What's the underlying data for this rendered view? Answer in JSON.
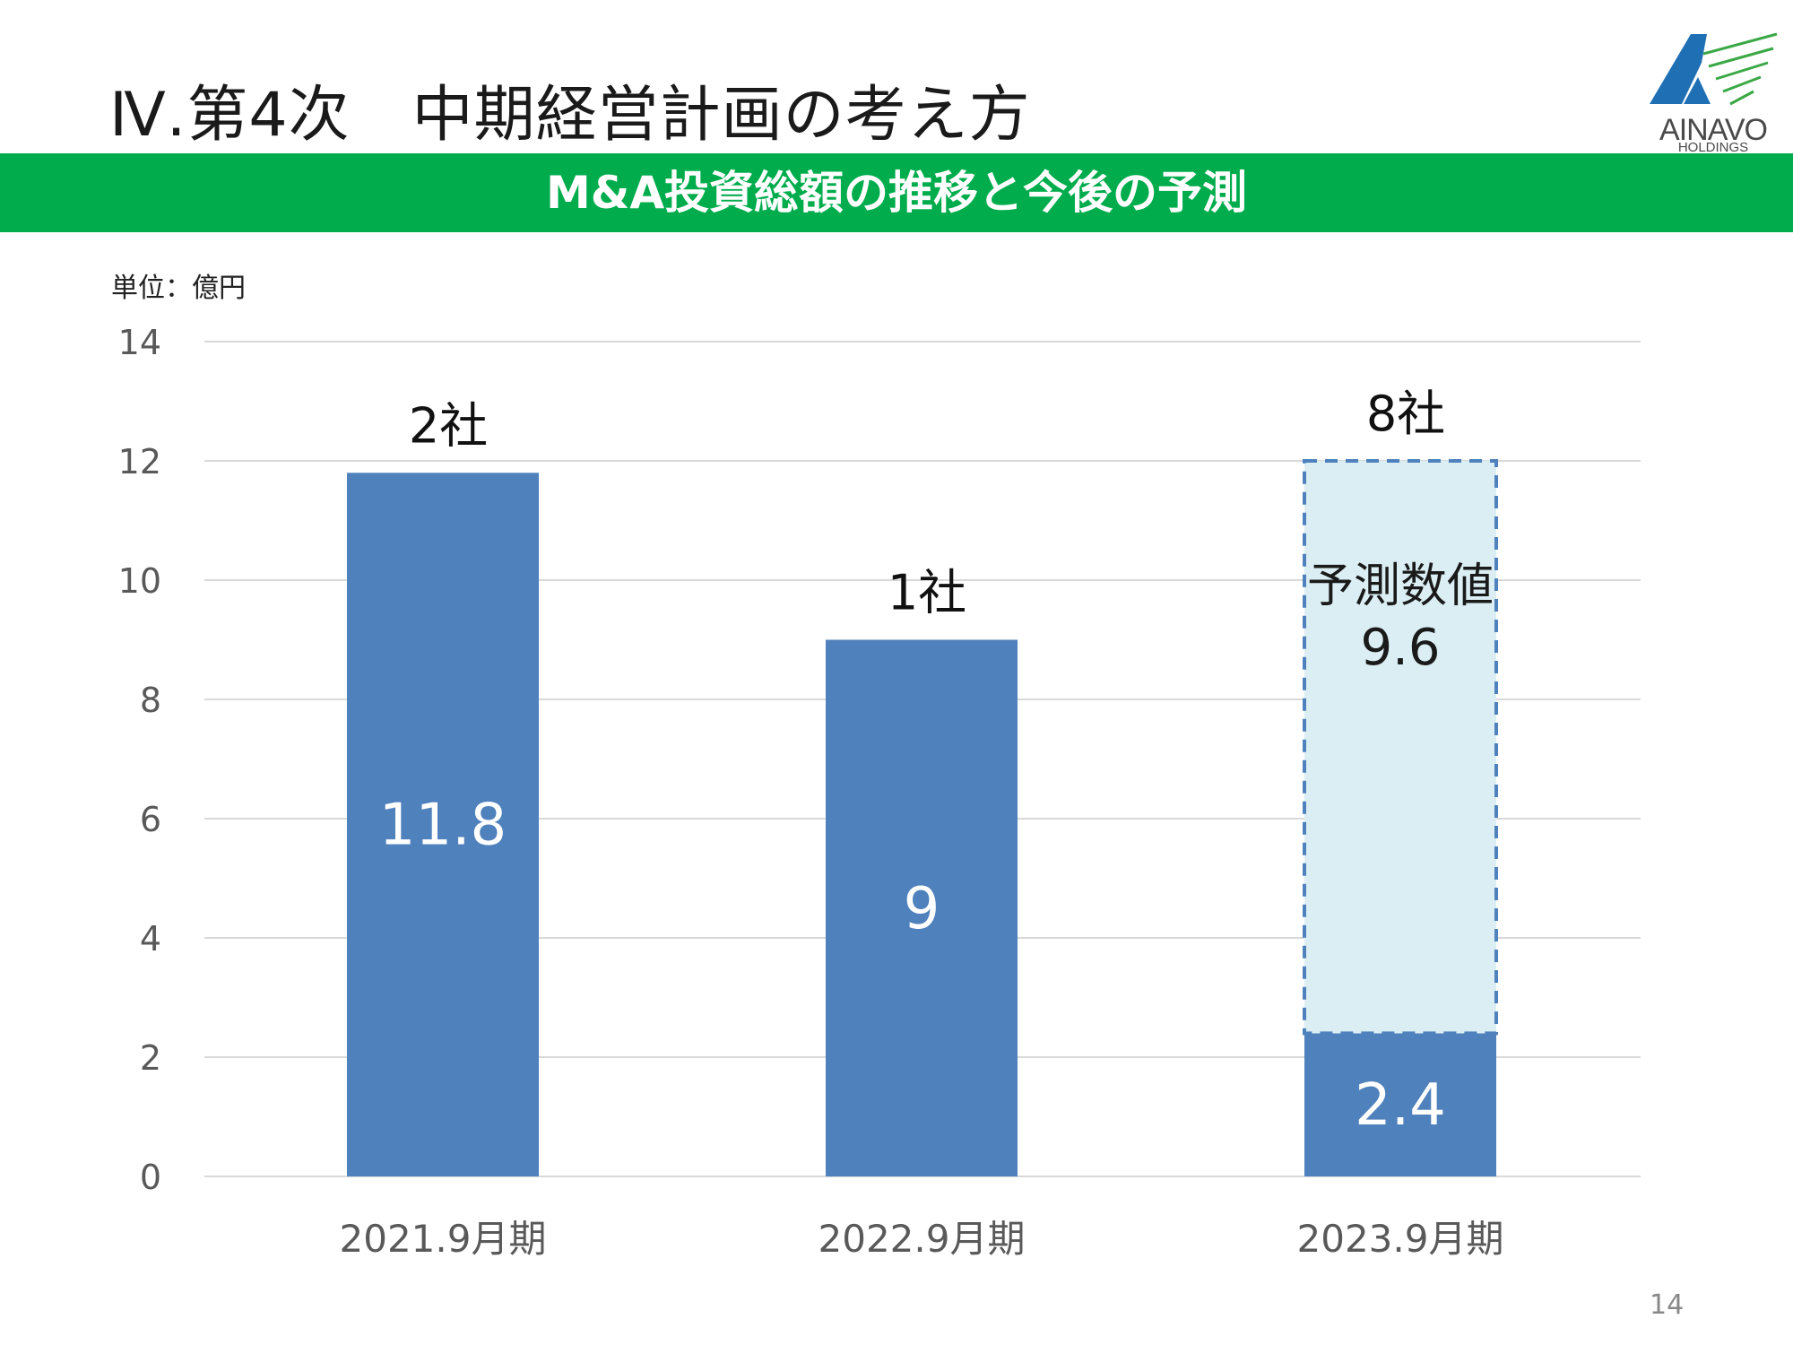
{
  "header": {
    "title": "Ⅳ.第4次　中期経営計画の考え方",
    "logo": {
      "name": "AINAVO",
      "sub": "HOLDINGS",
      "colors": {
        "blue": "#1f6fb5",
        "green": "#3aa845",
        "gray": "#4a4a4a"
      }
    }
  },
  "banner": {
    "text": "M&A投資総額の推移と今後の予測",
    "color": "#00ac4c"
  },
  "unit_label": "単位：億円",
  "page_number": "14",
  "chart_data": {
    "type": "bar",
    "categories": [
      "2021.9月期",
      "2022.9月期",
      "2023.9月期"
    ],
    "series": [
      {
        "values": [
          11.8,
          9,
          2.4
        ],
        "color": "#4f81bd"
      },
      {
        "values": [
          0,
          0,
          9.6
        ],
        "color": "#daeef3",
        "border": "dashed",
        "border_color": "#4f81bd"
      }
    ],
    "data_labels": [
      "11.8",
      "9",
      "2.4"
    ],
    "forecast_label": "予測数値",
    "forecast_value_label": "9.6",
    "company_counts": [
      "2社",
      "1社",
      "8社"
    ],
    "yticks": [
      "0",
      "2",
      "4",
      "6",
      "8",
      "10",
      "12",
      "14"
    ],
    "ylim": [
      0,
      14
    ],
    "grid": true,
    "title": "",
    "xlabel": "",
    "ylabel": ""
  }
}
